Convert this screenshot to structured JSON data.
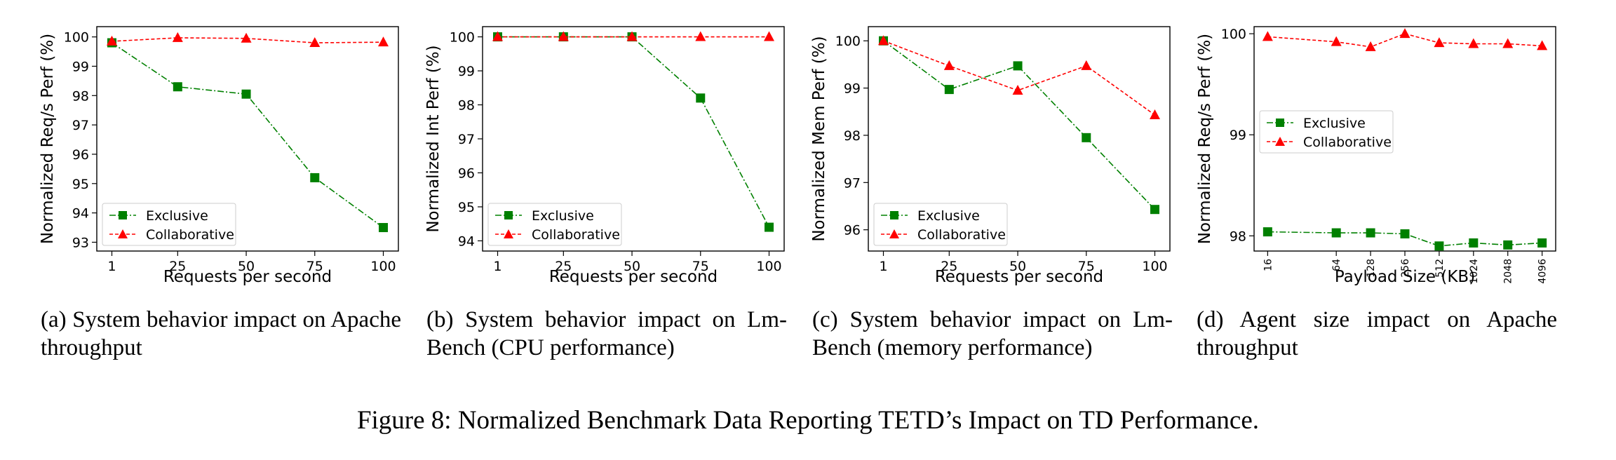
{
  "figure_caption": "Figure 8: Normalized Benchmark Data Reporting TETD’s Impact on TD Performance.",
  "colors": {
    "exclusive": "#008000",
    "collaborative": "#ff0000"
  },
  "chart_data": [
    {
      "type": "line",
      "caption": "(a) System behavior impact on Apache throughput",
      "xlabel": "Requests per second",
      "ylabel": "Normalized Req/s Perf (%)",
      "x": [
        1,
        25,
        50,
        75,
        100
      ],
      "xticks": [
        "1",
        "25",
        "50",
        "75",
        "100"
      ],
      "yticks": [
        93,
        94,
        95,
        96,
        97,
        98,
        99,
        100
      ],
      "ylim": [
        92.7,
        100.35
      ],
      "legend_position": "lower-left",
      "series": [
        {
          "name": "Exclusive",
          "values": [
            99.8,
            98.3,
            98.05,
            95.2,
            93.5
          ]
        },
        {
          "name": "Collaborative",
          "values": [
            99.85,
            99.97,
            99.95,
            99.8,
            99.82
          ]
        }
      ]
    },
    {
      "type": "line",
      "caption": "(b) System behavior impact on Lm-Bench (CPU performance)",
      "xlabel": "Requests per second",
      "ylabel": "Normalized Int Perf (%)",
      "x": [
        1,
        25,
        50,
        75,
        100
      ],
      "xticks": [
        "1",
        "25",
        "50",
        "75",
        "100"
      ],
      "yticks": [
        94,
        95,
        96,
        97,
        98,
        99,
        100
      ],
      "ylim": [
        93.7,
        100.3
      ],
      "legend_position": "lower-left",
      "series": [
        {
          "name": "Exclusive",
          "values": [
            100,
            100,
            100,
            98.2,
            94.4
          ]
        },
        {
          "name": "Collaborative",
          "values": [
            100,
            100,
            100,
            100,
            100
          ]
        }
      ]
    },
    {
      "type": "line",
      "caption": "(c) System behavior impact on Lm-Bench (memory performance)",
      "xlabel": "Requests per second",
      "ylabel": "Normalized Mem Perf (%)",
      "x": [
        1,
        25,
        50,
        75,
        100
      ],
      "xticks": [
        "1",
        "25",
        "50",
        "75",
        "100"
      ],
      "yticks": [
        96,
        97,
        98,
        99,
        100
      ],
      "ylim": [
        95.55,
        100.3
      ],
      "legend_position": "lower-left",
      "series": [
        {
          "name": "Exclusive",
          "values": [
            100,
            98.97,
            99.47,
            97.95,
            96.43
          ]
        },
        {
          "name": "Collaborative",
          "values": [
            100,
            99.47,
            98.95,
            99.47,
            98.43
          ]
        }
      ]
    },
    {
      "type": "line",
      "caption": "(d) Agent size impact on Apache throughput",
      "xlabel": "Payload Size (KB)",
      "ylabel": "Normalized Req/s Perf (%)",
      "x": [
        16,
        64,
        128,
        256,
        512,
        1024,
        2048,
        4096
      ],
      "xticks": [
        "16",
        "64",
        "128",
        "256",
        "512",
        "1024",
        "2048",
        "4096"
      ],
      "yticks": [
        98,
        99,
        100
      ],
      "ylim": [
        97.85,
        100.07
      ],
      "legend_position": "center-left",
      "series": [
        {
          "name": "Exclusive",
          "values": [
            98.04,
            98.03,
            98.03,
            98.02,
            97.9,
            97.93,
            97.91,
            97.93
          ]
        },
        {
          "name": "Collaborative",
          "values": [
            99.97,
            99.92,
            99.87,
            100.0,
            99.91,
            99.9,
            99.9,
            99.88
          ]
        }
      ]
    }
  ]
}
